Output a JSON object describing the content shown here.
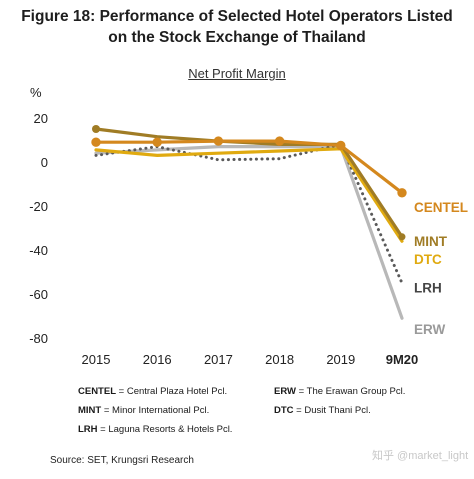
{
  "figure": {
    "title_line1": "Figure 18: Performance of Selected Hotel Operators Listed",
    "title_line2": "on the Stock Exchange of Thailand"
  },
  "chart_data": {
    "type": "line",
    "title": "Net Profit Margin",
    "ylabel": "%",
    "xlabel": "",
    "categories": [
      "2015",
      "2016",
      "2017",
      "2018",
      "2019",
      "9M20"
    ],
    "ylim": [
      -80,
      20
    ],
    "yticks": [
      20,
      0,
      -20,
      -40,
      -60,
      -80
    ],
    "grid": false,
    "series": [
      {
        "name": "CENTEL",
        "color": "#d4881e",
        "style": "solid-markers",
        "values": [
          9,
          9,
          9.5,
          9.5,
          7.5,
          -14
        ]
      },
      {
        "name": "MINT",
        "color": "#a07c25",
        "style": "solid",
        "values": [
          15,
          11.5,
          9.5,
          8,
          8,
          -34
        ]
      },
      {
        "name": "DTC",
        "color": "#e0aa10",
        "style": "solid",
        "values": [
          5.5,
          3,
          4,
          5,
          6,
          -36
        ]
      },
      {
        "name": "LRH",
        "color": "#5a5a5a",
        "style": "dotted",
        "values": [
          3,
          7,
          1,
          1.5,
          8,
          -55
        ]
      },
      {
        "name": "ERW",
        "color": "#b8b8b8",
        "style": "solid",
        "values": [
          4,
          5.5,
          7,
          7,
          7,
          -71
        ]
      }
    ]
  },
  "legend": [
    {
      "abbr": "CENTEL",
      "full": "= Central Plaza Hotel Pcl."
    },
    {
      "abbr": "ERW",
      "full": "= The Erawan Group Pcl."
    },
    {
      "abbr": "MINT",
      "full": "= Minor International Pcl."
    },
    {
      "abbr": "DTC",
      "full": "= Dusit Thani Pcl."
    },
    {
      "abbr": "LRH",
      "full": "= Laguna Resorts & Hotels Pcl."
    }
  ],
  "source": "Source: SET, Krungsri Research",
  "watermark": "知乎 @market_light"
}
